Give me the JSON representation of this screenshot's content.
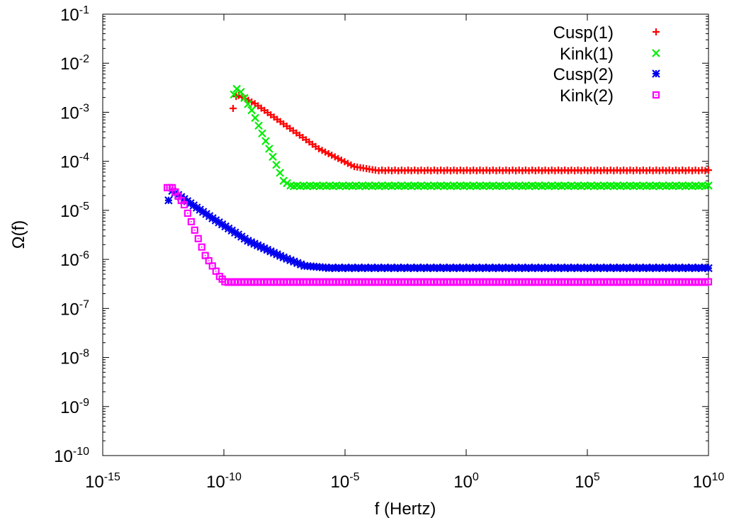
{
  "chart_data": {
    "type": "scatter",
    "title": "",
    "xlabel": "f (Hertz)",
    "ylabel": "Ω(f)",
    "xscale": "log",
    "yscale": "log",
    "xlim": [
      1e-15,
      10000000000.0
    ],
    "ylim": [
      1e-10,
      0.1
    ],
    "x_ticks": [
      {
        "base": "10",
        "exp": "-15",
        "value": 1e-15
      },
      {
        "base": "10",
        "exp": "-10",
        "value": 1e-10
      },
      {
        "base": "10",
        "exp": "-5",
        "value": 1e-05
      },
      {
        "base": "10",
        "exp": "0",
        "value": 1
      },
      {
        "base": "10",
        "exp": "5",
        "value": 100000.0
      },
      {
        "base": "10",
        "exp": "10",
        "value": 10000000000.0
      }
    ],
    "y_ticks": [
      {
        "base": "10",
        "exp": "-1",
        "value": 0.1
      },
      {
        "base": "10",
        "exp": "-2",
        "value": 0.01
      },
      {
        "base": "10",
        "exp": "-3",
        "value": 0.001
      },
      {
        "base": "10",
        "exp": "-4",
        "value": 0.0001
      },
      {
        "base": "10",
        "exp": "-5",
        "value": 1e-05
      },
      {
        "base": "10",
        "exp": "-6",
        "value": 1e-06
      },
      {
        "base": "10",
        "exp": "-7",
        "value": 1e-07
      },
      {
        "base": "10",
        "exp": "-8",
        "value": 1e-08
      },
      {
        "base": "10",
        "exp": "-9",
        "value": 1e-09
      },
      {
        "base": "10",
        "exp": "-10",
        "value": 1e-10
      }
    ],
    "grid": false,
    "legend_position": "top-right",
    "series": [
      {
        "name": "Cusp(1)",
        "color": "#ff0000",
        "marker": "plus",
        "points": [
          [
            2.4e-10,
            0.0012
          ],
          [
            3.2e-10,
            0.0021
          ],
          [
            4.1e-10,
            0.0022
          ],
          [
            1.9e-09,
            0.0015
          ],
          [
            2.9e-08,
            0.00058
          ],
          [
            8.3e-07,
            0.00018
          ],
          [
            2.4e-05,
            7.8e-05
          ],
          [
            0.00018,
            6.6e-05
          ],
          [
            10000000000.0,
            6.6e-05
          ]
        ]
      },
      {
        "name": "Kink(1)",
        "color": "#00ee00",
        "marker": "cross",
        "points": [
          [
            2.6e-10,
            0.0023
          ],
          [
            3.4e-10,
            0.003
          ],
          [
            5e-10,
            0.0026
          ],
          [
            1.4e-09,
            0.0011
          ],
          [
            7.4e-09,
            0.00018
          ],
          [
            2.9e-08,
            4e-05
          ],
          [
            5.6e-08,
            3.2e-05
          ],
          [
            10000000000.0,
            3.2e-05
          ]
        ]
      },
      {
        "name": "Cusp(2)",
        "color": "#0000ee",
        "marker": "star",
        "points": [
          [
            5.2e-13,
            1.6e-05
          ],
          [
            7.4e-13,
            2.5e-05
          ],
          [
            2.3e-12,
            1.7e-05
          ],
          [
            3.4e-11,
            6.9e-06
          ],
          [
            9.8e-10,
            2.4e-06
          ],
          [
            2.9e-08,
            1.1e-06
          ],
          [
            2.1e-07,
            7.4e-07
          ],
          [
            1.6e-06,
            6.8e-07
          ],
          [
            10000000000.0,
            6.8e-07
          ]
        ]
      },
      {
        "name": "Kink(2)",
        "color": "#ff00ff",
        "marker": "box",
        "points": [
          [
            4.6e-13,
            2.9e-05
          ],
          [
            7.4e-13,
            2.9e-05
          ],
          [
            2.3e-12,
            1.3e-05
          ],
          [
            1.7e-11,
            1.2e-06
          ],
          [
            6.6e-11,
            4.5e-07
          ],
          [
            1.1e-10,
            3.5e-07
          ],
          [
            10000000000.0,
            3.5e-07
          ]
        ]
      }
    ]
  }
}
